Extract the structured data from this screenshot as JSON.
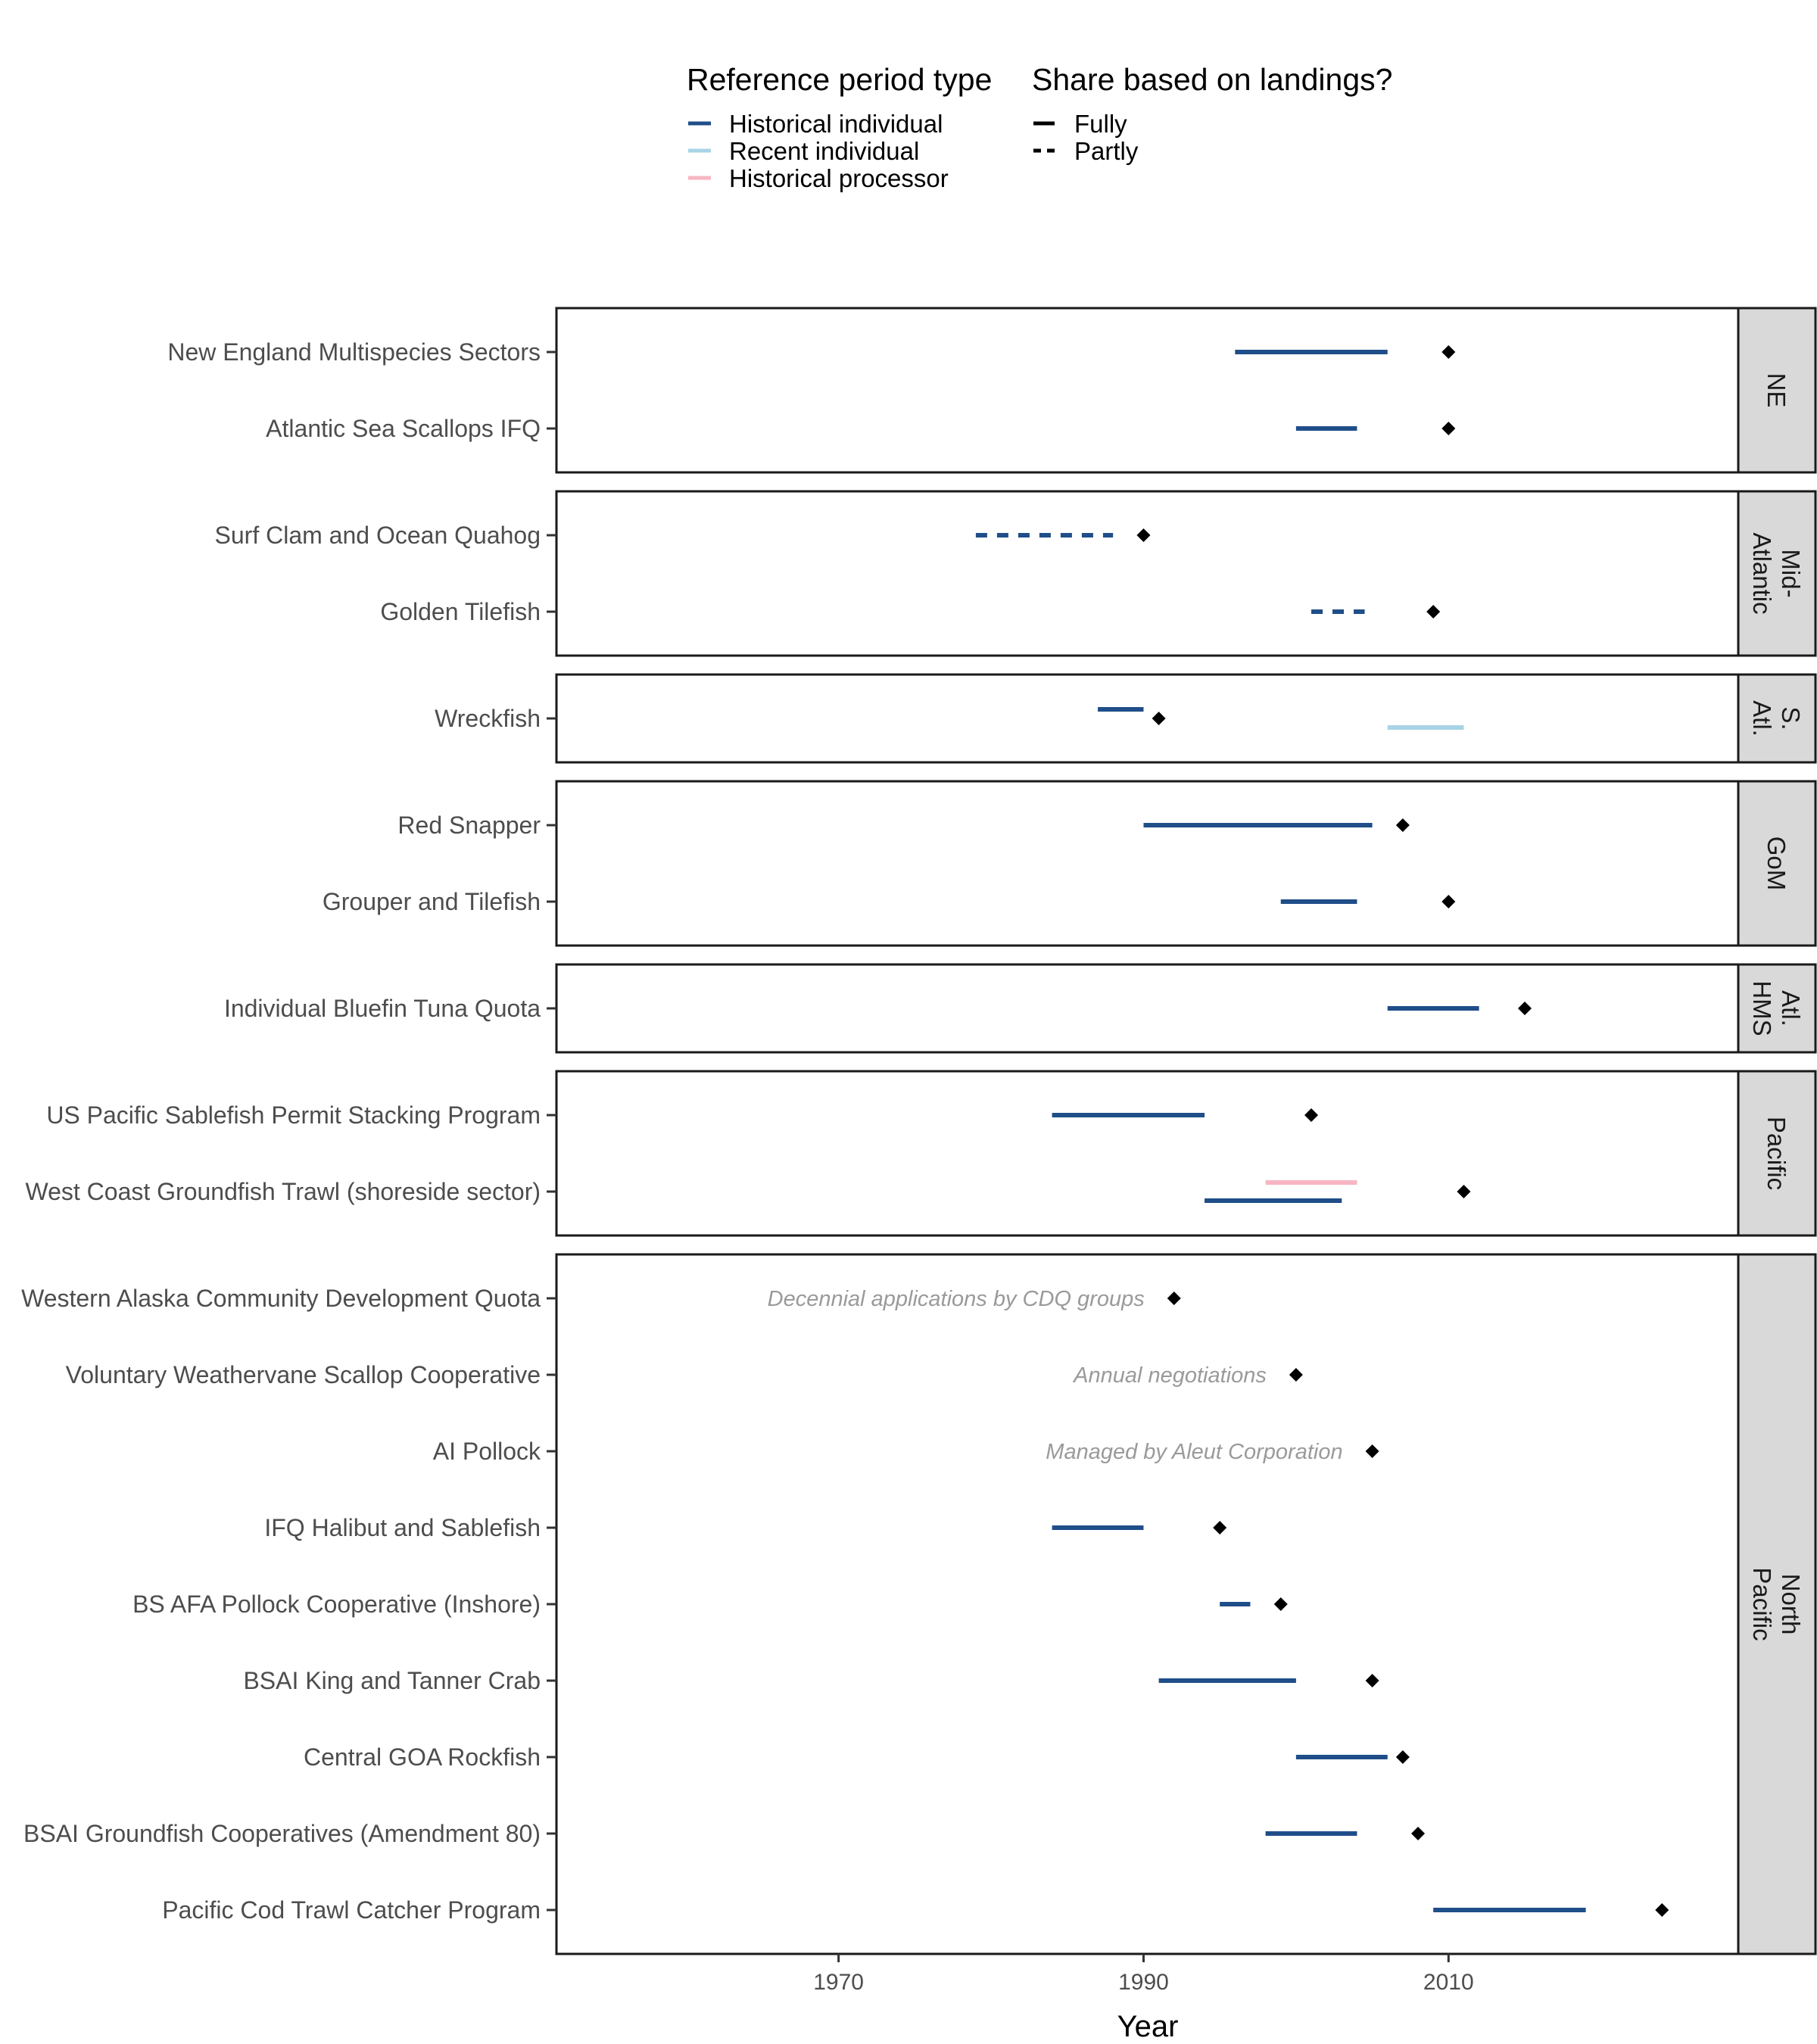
{
  "legend": {
    "period_type_title": "Reference period type",
    "period_types": [
      {
        "name": "Historical individual",
        "color": "#1f4e89"
      },
      {
        "name": "Recent individual",
        "color": "#a8d4e6"
      },
      {
        "name": "Historical processor",
        "color": "#f7b6c2"
      }
    ],
    "landings_title": "Share based on landings?",
    "landings": [
      {
        "name": "Fully",
        "dash": "solid"
      },
      {
        "name": "Partly",
        "dash": "dashed"
      }
    ]
  },
  "chart_data": {
    "type": "timeline",
    "xlabel": "Year",
    "x_ticks": [
      1970,
      1990,
      2010
    ],
    "xlim": [
      1951.5,
      2029
    ],
    "point_color": "#000000",
    "panels": [
      {
        "region": "NE",
        "programs": [
          {
            "name": "New England Multispecies Sectors",
            "implemented": 2010,
            "periods": [
              {
                "type": "Historical individual",
                "landings": "Fully",
                "start": 1996,
                "end": 2006
              }
            ]
          },
          {
            "name": "Atlantic Sea Scallops IFQ",
            "implemented": 2010,
            "periods": [
              {
                "type": "Historical individual",
                "landings": "Fully",
                "start": 2000,
                "end": 2004
              }
            ]
          }
        ]
      },
      {
        "region": "Mid-\nAtlantic",
        "programs": [
          {
            "name": "Surf Clam and Ocean Quahog",
            "implemented": 1990,
            "periods": [
              {
                "type": "Historical individual",
                "landings": "Partly",
                "start": 1979,
                "end": 1988
              }
            ]
          },
          {
            "name": "Golden Tilefish",
            "implemented": 2009,
            "periods": [
              {
                "type": "Historical individual",
                "landings": "Partly",
                "start": 2001,
                "end": 2004.5
              }
            ]
          }
        ]
      },
      {
        "region": "S.\nAtl.",
        "programs": [
          {
            "name": "Wreckfish",
            "implemented": 1991,
            "periods": [
              {
                "type": "Historical individual",
                "landings": "Fully",
                "start": 1987,
                "end": 1990
              },
              {
                "type": "Recent individual",
                "landings": "Fully",
                "start": 2006,
                "end": 2011
              }
            ]
          }
        ]
      },
      {
        "region": "GoM",
        "programs": [
          {
            "name": "Red Snapper",
            "implemented": 2007,
            "periods": [
              {
                "type": "Historical individual",
                "landings": "Fully",
                "start": 1990,
                "end": 2005
              }
            ]
          },
          {
            "name": "Grouper and Tilefish",
            "implemented": 2010,
            "periods": [
              {
                "type": "Historical individual",
                "landings": "Fully",
                "start": 1999,
                "end": 2004
              }
            ]
          }
        ]
      },
      {
        "region": "Atl.\nHMS",
        "programs": [
          {
            "name": "Individual Bluefin Tuna Quota",
            "implemented": 2015,
            "periods": [
              {
                "type": "Historical individual",
                "landings": "Fully",
                "start": 2006,
                "end": 2012
              }
            ]
          }
        ]
      },
      {
        "region": "Pacific",
        "programs": [
          {
            "name": "US Pacific Sablefish Permit Stacking Program",
            "implemented": 2001,
            "periods": [
              {
                "type": "Historical individual",
                "landings": "Fully",
                "start": 1984,
                "end": 1994
              }
            ]
          },
          {
            "name": "West Coast Groundfish Trawl (shoreside sector)",
            "implemented": 2011,
            "periods": [
              {
                "type": "Historical processor",
                "landings": "Fully",
                "start": 1998,
                "end": 2004
              },
              {
                "type": "Historical individual",
                "landings": "Fully",
                "start": 1994,
                "end": 2003
              }
            ]
          }
        ]
      },
      {
        "region": "North\nPacific",
        "programs": [
          {
            "name": "Western Alaska Community Development Quota",
            "implemented": 1992,
            "note": "Decennial applications by CDQ groups",
            "periods": []
          },
          {
            "name": "Voluntary Weathervane Scallop Cooperative",
            "implemented": 2000,
            "note": "Annual negotiations",
            "periods": []
          },
          {
            "name": "AI Pollock",
            "implemented": 2005,
            "note": "Managed by Aleut Corporation",
            "periods": []
          },
          {
            "name": "IFQ Halibut and Sablefish",
            "implemented": 1995,
            "periods": [
              {
                "type": "Historical individual",
                "landings": "Fully",
                "start": 1984,
                "end": 1990
              }
            ]
          },
          {
            "name": "BS AFA Pollock Cooperative (Inshore)",
            "implemented": 1999,
            "periods": [
              {
                "type": "Historical individual",
                "landings": "Fully",
                "start": 1995,
                "end": 1997
              }
            ]
          },
          {
            "name": "BSAI King and Tanner Crab",
            "implemented": 2005,
            "periods": [
              {
                "type": "Historical individual",
                "landings": "Fully",
                "start": 1991,
                "end": 2000
              }
            ]
          },
          {
            "name": "Central GOA Rockfish",
            "implemented": 2007,
            "periods": [
              {
                "type": "Historical individual",
                "landings": "Fully",
                "start": 2000,
                "end": 2006
              }
            ]
          },
          {
            "name": "BSAI Groundfish Cooperatives (Amendment 80)",
            "implemented": 2008,
            "periods": [
              {
                "type": "Historical individual",
                "landings": "Fully",
                "start": 1998,
                "end": 2004
              }
            ]
          },
          {
            "name": "Pacific Cod Trawl Catcher Program",
            "implemented": 2024,
            "periods": [
              {
                "type": "Historical individual",
                "landings": "Fully",
                "start": 2009,
                "end": 2019
              }
            ]
          }
        ]
      }
    ]
  }
}
